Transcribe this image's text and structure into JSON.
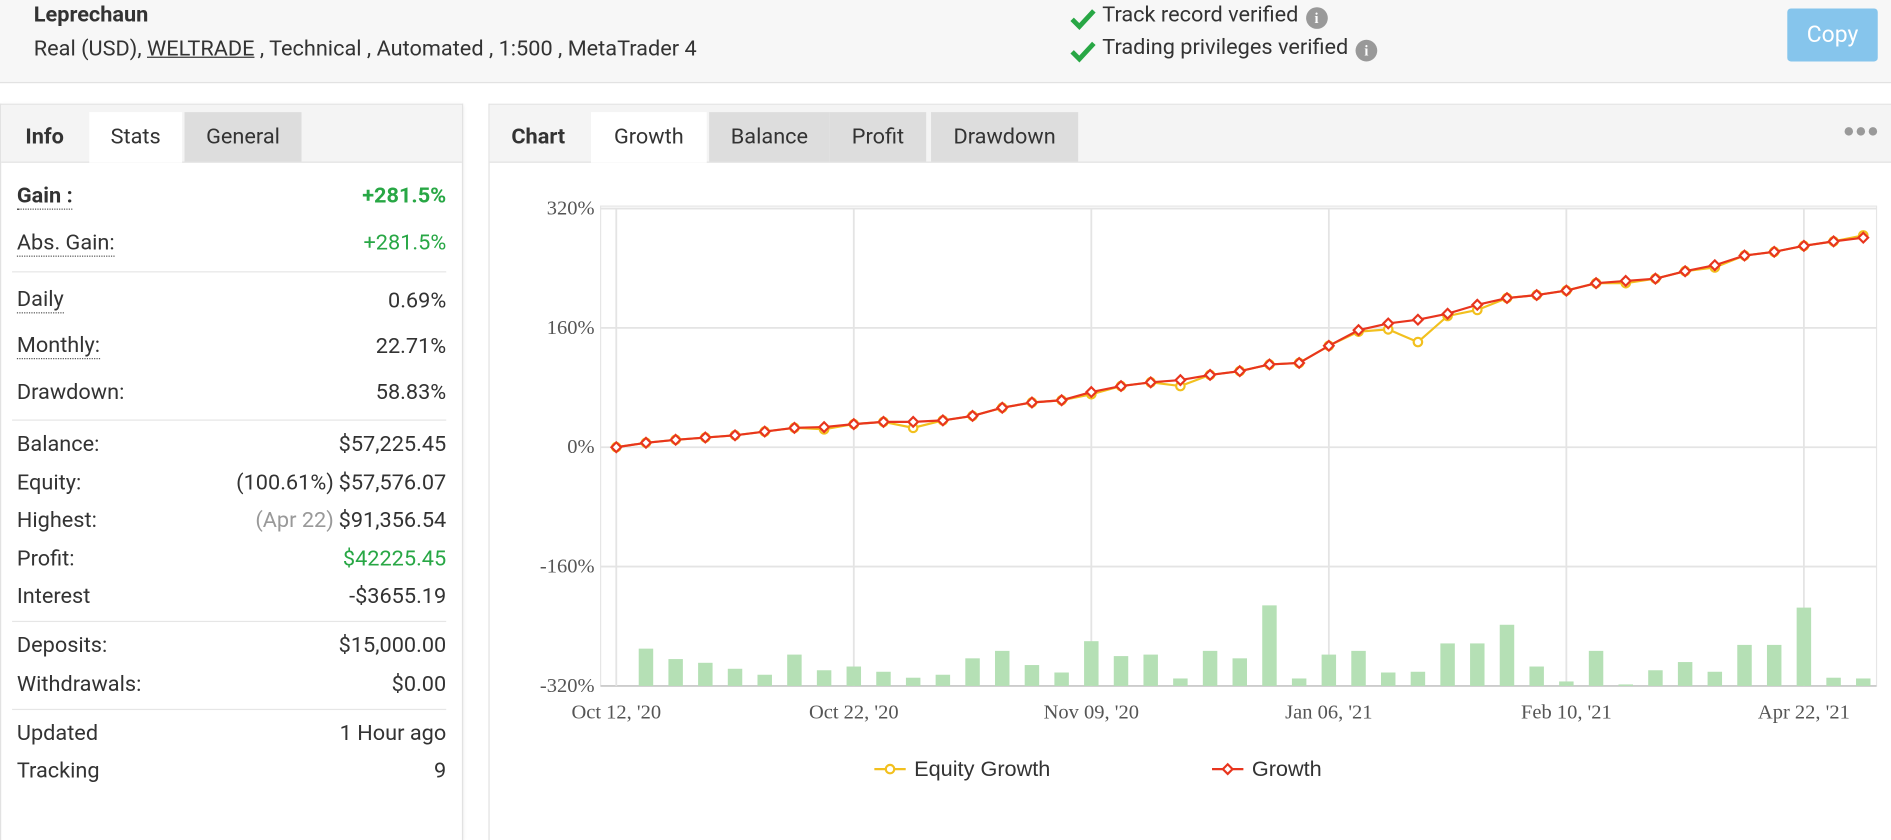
{
  "header": {
    "title": "Leprechaun",
    "account": "Real (USD),",
    "broker": "WELTRADE",
    "details": ", Technical , Automated , 1:500 , MetaTrader 4",
    "verifications": [
      "Track record verified",
      "Trading privileges verified"
    ],
    "copy_button": "Copy"
  },
  "left_tabs": {
    "items": [
      "Info",
      "Stats",
      "General"
    ],
    "active": 1
  },
  "stats": [
    [
      {
        "label": "Gain :",
        "value": "+281.5%",
        "color": "#28a745",
        "bold": true,
        "dotted": true
      },
      {
        "label": "Abs. Gain:",
        "value": "+281.5%",
        "color": "#28a745",
        "dotted": true
      }
    ],
    [
      {
        "label": "Daily",
        "value": "0.69%",
        "dotted": true
      },
      {
        "label": "Monthly:",
        "value": "22.71%",
        "dotted": true
      },
      {
        "label": "Drawdown:",
        "value": "58.83%"
      }
    ],
    [
      {
        "label": "Balance:",
        "value": "$57,225.45"
      },
      {
        "label": "Equity:",
        "note": "(100.61%)",
        "value": "$57,576.07"
      },
      {
        "label": "Highest:",
        "note": "(Apr 22)",
        "value": "$91,356.54"
      },
      {
        "label": "Profit:",
        "value": "$42225.45",
        "color": "#28a745"
      },
      {
        "label": "Interest",
        "value": "-$3655.19"
      }
    ],
    [
      {
        "label": "Deposits:",
        "value": "$15,000.00"
      },
      {
        "label": "Withdrawals:",
        "value": "$0.00"
      }
    ],
    [
      {
        "label": "Updated",
        "value": "1 Hour ago"
      },
      {
        "label": "Tracking",
        "value": "9"
      }
    ]
  ],
  "chart_tabs": {
    "label": "Chart",
    "items": [
      "Growth",
      "Balance",
      "Profit",
      "Drawdown"
    ],
    "active": 0
  },
  "chart_data": {
    "type": "line",
    "categories": [
      "Oct 12, '20",
      null,
      null,
      null,
      null,
      null,
      null,
      null,
      "Oct 22, '20",
      null,
      null,
      null,
      null,
      null,
      null,
      null,
      "Nov 09, '20",
      null,
      null,
      null,
      null,
      null,
      null,
      null,
      "Jan 06, '21",
      null,
      null,
      null,
      null,
      null,
      null,
      null,
      "Feb 10, '21",
      null,
      null,
      null,
      null,
      null,
      null,
      null,
      "Apr 22, '21",
      null,
      null
    ],
    "series": [
      {
        "name": "Equity Growth",
        "color": "#f2c01e",
        "marker": "circle",
        "values": [
          0,
          6,
          10,
          13,
          16,
          21,
          26,
          24,
          31,
          34,
          26,
          36,
          42,
          53,
          60,
          63,
          71,
          82,
          87,
          82,
          97,
          102,
          111,
          113,
          136,
          155,
          158,
          141,
          176,
          184,
          200,
          204,
          210,
          220,
          220,
          226,
          236,
          241,
          257,
          262,
          270,
          276,
          284
        ]
      },
      {
        "name": "Growth",
        "color": "#e8351e",
        "marker": "diamond",
        "values": [
          0,
          6,
          10,
          13,
          16,
          21,
          26,
          27,
          31,
          34,
          34,
          36,
          42,
          53,
          60,
          63,
          74,
          82,
          87,
          90,
          97,
          102,
          111,
          113,
          136,
          157,
          166,
          171,
          179,
          191,
          200,
          204,
          210,
          220,
          223,
          226,
          236,
          244,
          257,
          262,
          270,
          276,
          281
        ]
      }
    ],
    "bars": {
      "type": "bar",
      "color": "#b5e0b5",
      "values": [
        null,
        -270,
        -284,
        -289,
        -297,
        -305,
        -278,
        -299,
        -294,
        -301,
        -309,
        -305,
        -283,
        -273,
        -292,
        -302,
        -260,
        -280,
        -278,
        -310,
        -273,
        -283,
        -212,
        -310,
        -278,
        -273,
        -302,
        -301,
        -263,
        -263,
        -238,
        -294,
        -314,
        -273,
        -318,
        -299,
        -288,
        -301,
        -265,
        -265,
        -215,
        -309,
        -310
      ]
    },
    "ylim": [
      -320,
      320
    ],
    "yticks": [
      {
        "value": -320,
        "label": "-320%"
      },
      {
        "value": -160,
        "label": "-160%"
      },
      {
        "value": 0,
        "label": "0%"
      },
      {
        "value": 160,
        "label": "160%"
      },
      {
        "value": 320,
        "label": "320%"
      }
    ],
    "grid": true
  }
}
